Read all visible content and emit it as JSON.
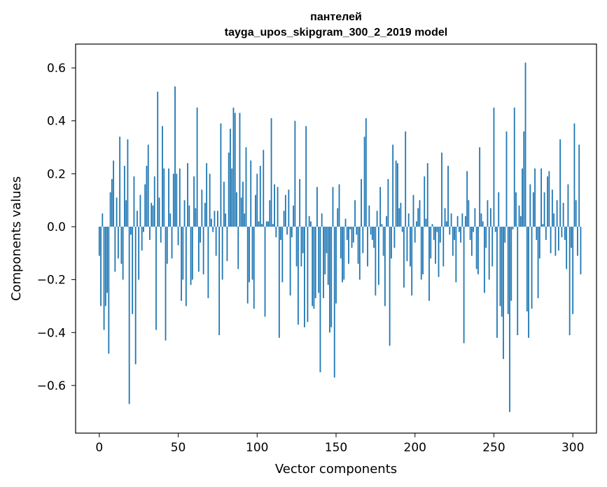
{
  "chart_data": {
    "type": "bar",
    "title": "пантелей",
    "subtitle": "tayga_upos_skipgram_300_2_2019 model",
    "xlabel": "Vector components",
    "ylabel": "Components values",
    "xlim": [
      -15,
      315
    ],
    "ylim": [
      -0.78,
      0.69
    ],
    "xticks": [
      0,
      50,
      100,
      150,
      200,
      250,
      300
    ],
    "yticks": [
      -0.6,
      -0.4,
      -0.2,
      0.0,
      0.2,
      0.4,
      0.6
    ],
    "ytick_labels": [
      "−0.6",
      "−0.4",
      "−0.2",
      "0.0",
      "0.2",
      "0.4",
      "0.6"
    ],
    "bar_color": "#1f77b4",
    "x_start": 0,
    "values": [
      -0.11,
      -0.3,
      0.05,
      -0.39,
      -0.3,
      -0.25,
      -0.48,
      0.13,
      0.18,
      0.25,
      -0.17,
      0.11,
      -0.12,
      0.34,
      -0.14,
      -0.2,
      0.23,
      0.1,
      0.33,
      -0.67,
      -0.03,
      -0.33,
      0.19,
      -0.52,
      0.06,
      -0.2,
      0.12,
      -0.09,
      -0.02,
      0.16,
      0.23,
      0.31,
      -0.05,
      0.09,
      0.08,
      0.19,
      -0.39,
      0.51,
      0.11,
      -0.06,
      0.38,
      0.22,
      -0.43,
      -0.14,
      0.22,
      0.05,
      -0.12,
      0.2,
      0.53,
      0.2,
      -0.07,
      0.22,
      -0.28,
      -0.2,
      0.1,
      -0.3,
      0.24,
      0.08,
      -0.22,
      -0.2,
      0.19,
      0.07,
      0.45,
      -0.17,
      -0.06,
      0.14,
      -0.18,
      0.09,
      0.24,
      -0.27,
      0.2,
      0.03,
      -0.02,
      0.06,
      -0.11,
      0.06,
      -0.41,
      0.39,
      -0.2,
      0.17,
      0.05,
      -0.13,
      0.28,
      0.37,
      0.22,
      0.45,
      0.43,
      0.13,
      -0.16,
      0.43,
      0.11,
      0.17,
      0.05,
      0.3,
      -0.29,
      -0.21,
      0.25,
      -0.2,
      -0.31,
      0.12,
      0.2,
      0.02,
      0.23,
      0.01,
      0.29,
      -0.34,
      0.02,
      0.02,
      0.1,
      0.41,
      0.01,
      0.16,
      -0.04,
      0.15,
      -0.42,
      -0.05,
      -0.21,
      0.06,
      0.12,
      -0.03,
      0.14,
      -0.26,
      -0.04,
      0.08,
      0.4,
      -0.15,
      -0.37,
      0.18,
      -0.15,
      -0.1,
      -0.38,
      0.38,
      -0.36,
      0.04,
      0.02,
      -0.3,
      -0.31,
      -0.27,
      0.15,
      -0.25,
      -0.55,
      0.05,
      -0.27,
      -0.18,
      -0.1,
      -0.22,
      -0.4,
      -0.38,
      0.15,
      -0.57,
      -0.29,
      0.07,
      0.16,
      -0.12,
      -0.21,
      -0.2,
      0.03,
      -0.05,
      -0.14,
      -0.01,
      -0.08,
      -0.06,
      0.1,
      -0.03,
      -0.14,
      -0.2,
      0.18,
      -0.1,
      0.34,
      0.41,
      -0.15,
      0.08,
      -0.03,
      -0.05,
      -0.08,
      -0.26,
      0.06,
      -0.22,
      0.15,
      0.01,
      -0.11,
      -0.3,
      0.04,
      0.18,
      -0.45,
      -0.12,
      0.31,
      -0.08,
      0.25,
      0.24,
      0.07,
      0.09,
      -0.02,
      -0.23,
      0.36,
      -0.13,
      0.05,
      -0.15,
      -0.26,
      0.12,
      -0.06,
      0.02,
      0.07,
      0.1,
      -0.2,
      -0.18,
      0.19,
      0.03,
      0.24,
      -0.28,
      -0.12,
      0.01,
      -0.05,
      -0.14,
      -0.02,
      -0.19,
      -0.06,
      0.28,
      -0.15,
      0.07,
      0.02,
      0.23,
      -0.03,
      0.05,
      -0.11,
      -0.05,
      -0.21,
      0.04,
      -0.02,
      -0.06,
      0.05,
      -0.44,
      0.04,
      0.21,
      0.1,
      -0.05,
      -0.11,
      -0.02,
      0.07,
      -0.16,
      -0.18,
      0.3,
      0.05,
      0.02,
      -0.25,
      -0.08,
      0.1,
      -0.2,
      0.07,
      -0.15,
      0.45,
      -0.02,
      -0.42,
      0.13,
      -0.3,
      -0.34,
      -0.5,
      -0.06,
      0.36,
      -0.33,
      -0.7,
      -0.28,
      -0.01,
      0.45,
      0.13,
      -0.41,
      0.08,
      0.04,
      0.22,
      0.36,
      0.62,
      -0.32,
      -0.42,
      0.16,
      -0.31,
      0.13,
      0.22,
      -0.05,
      -0.27,
      -0.12,
      0.22,
      0.01,
      0.13,
      -0.05,
      0.19,
      0.21,
      -0.1,
      0.14,
      0.05,
      -0.11,
      0.1,
      -0.09,
      0.33,
      -0.04,
      0.09,
      -0.05,
      -0.16,
      0.16,
      -0.41,
      -0.08,
      -0.33,
      0.39,
      0.1,
      -0.11,
      0.31,
      -0.18
    ]
  }
}
